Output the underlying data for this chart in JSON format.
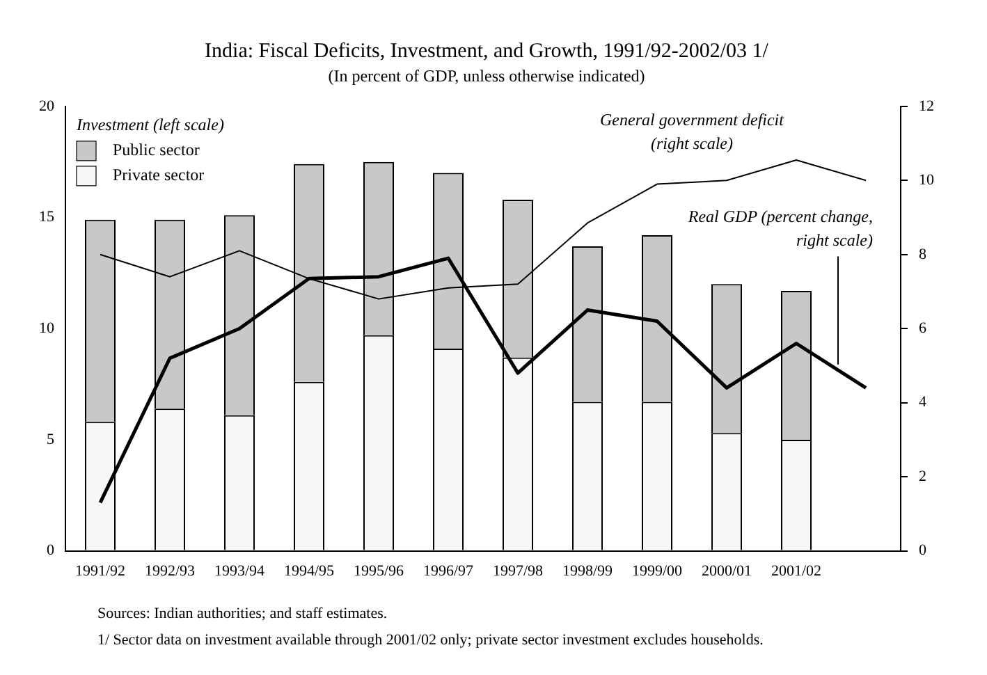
{
  "chart_data": {
    "type": "bar",
    "title": "India: Fiscal Deficits, Investment, and Growth, 1991/92-2002/03 1/",
    "subtitle": "(In percent of GDP, unless otherwise indicated)",
    "legend_title": "Investment (left scale)",
    "legend": "top left",
    "stacked": true,
    "grid": false,
    "marker": "none",
    "line_style": "solid",
    "categories": [
      "1991/92",
      "1992/93",
      "1993/94",
      "1994/95",
      "1995/96",
      "1996/97",
      "1997/98",
      "1998/99",
      "1999/00",
      "2000/01",
      "2001/02",
      null
    ],
    "series": [
      {
        "name": "Private sector",
        "color": "#f7f7f7",
        "values": [
          5.8,
          6.4,
          6.1,
          7.6,
          9.7,
          9.1,
          8.7,
          6.7,
          6.7,
          5.3,
          5.0,
          null
        ]
      },
      {
        "name": "Public sector",
        "color": "#c8c8c8",
        "values": [
          9.1,
          8.5,
          9.0,
          9.8,
          7.8,
          7.9,
          7.1,
          7.0,
          7.5,
          6.7,
          6.7,
          null
        ]
      },
      {
        "name": "General government deficit (right scale)",
        "type": "line",
        "axis": "y2",
        "color": "#000000",
        "values": [
          8.0,
          7.4,
          8.1,
          7.35,
          6.8,
          7.1,
          7.2,
          8.85,
          9.9,
          10.0,
          10.55,
          10.0
        ]
      },
      {
        "name": "Real GDP (percent change, right scale)",
        "type": "line",
        "axis": "y2",
        "color": "#000000",
        "values": [
          1.3,
          5.2,
          6.0,
          7.35,
          7.4,
          7.9,
          4.8,
          6.5,
          6.2,
          4.4,
          5.6,
          4.4
        ]
      }
    ],
    "ylim": [
      0,
      20
    ],
    "yticks": [
      0,
      5,
      10,
      15,
      20
    ],
    "y2lim": [
      0,
      12
    ],
    "y2ticks": [
      0,
      2,
      4,
      6,
      8,
      10,
      12
    ],
    "annotations": [
      "Sources: Indian authorities; and staff estimates.",
      "1/ Sector data on investment available through 2001/02 only; private sector investment excludes households."
    ]
  }
}
